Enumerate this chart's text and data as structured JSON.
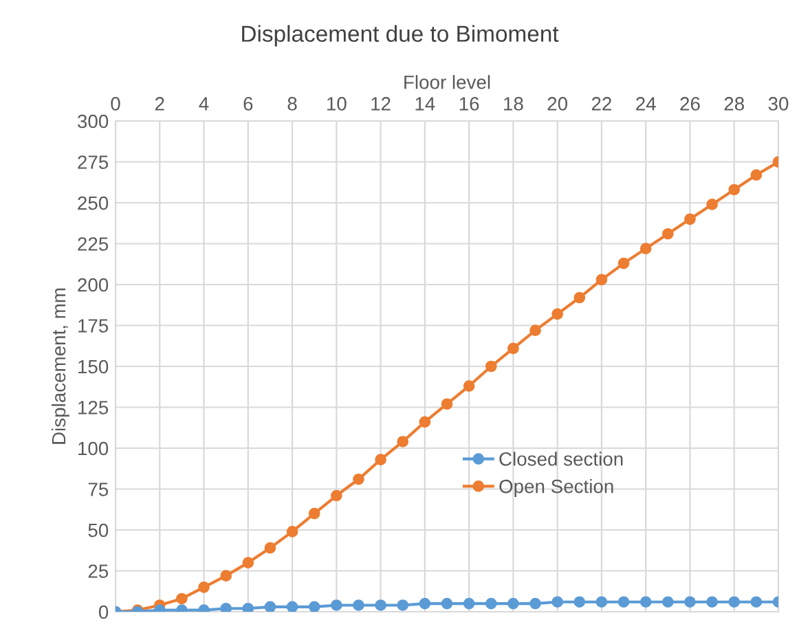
{
  "chart_data": {
    "type": "line",
    "title": "Displacement due to Bimoment",
    "xlabel": "Floor level",
    "ylabel": "Displacement, mm",
    "x": [
      0,
      1,
      2,
      3,
      4,
      5,
      6,
      7,
      8,
      9,
      10,
      11,
      12,
      13,
      14,
      15,
      16,
      17,
      18,
      19,
      20,
      21,
      22,
      23,
      24,
      25,
      26,
      27,
      28,
      29,
      30
    ],
    "series": [
      {
        "name": "Closed section",
        "color": "#5b9bd5",
        "values": [
          0,
          0,
          1,
          1,
          1,
          2,
          2,
          3,
          3,
          3,
          4,
          4,
          4,
          4,
          5,
          5,
          5,
          5,
          5,
          5,
          6,
          6,
          6,
          6,
          6,
          6,
          6,
          6,
          6,
          6,
          6
        ]
      },
      {
        "name": "Open Section",
        "color": "#ed7d31",
        "values": [
          0,
          1,
          4,
          8,
          15,
          22,
          30,
          39,
          49,
          60,
          71,
          81,
          93,
          104,
          116,
          127,
          138,
          150,
          161,
          172,
          182,
          192,
          203,
          213,
          222,
          231,
          240,
          249,
          258,
          267,
          275
        ]
      }
    ],
    "xlim": [
      0,
      30
    ],
    "xticks": [
      0,
      2,
      4,
      6,
      8,
      10,
      12,
      14,
      16,
      18,
      20,
      22,
      24,
      26,
      28,
      30
    ],
    "ylim": [
      0,
      300
    ],
    "yticks": [
      0,
      25,
      50,
      75,
      100,
      125,
      150,
      175,
      200,
      225,
      250,
      275,
      300
    ],
    "grid": true,
    "legend": "center",
    "marker": "circle",
    "line_style": "solid"
  }
}
